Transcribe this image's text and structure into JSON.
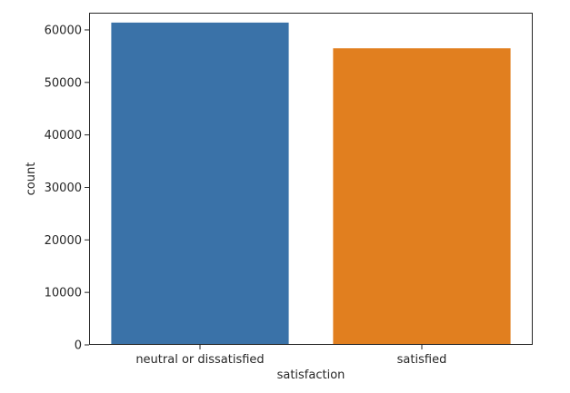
{
  "chart_data": {
    "type": "bar",
    "title": "",
    "xlabel": "satisfaction",
    "ylabel": "count",
    "categories": [
      "neutral or dissatisfied",
      "satisfied"
    ],
    "values": [
      61400,
      56500
    ],
    "colors": [
      "#3a72a8",
      "#e17f1f"
    ],
    "ylim": [
      0,
      63280
    ],
    "yticks": [
      0,
      10000,
      20000,
      30000,
      40000,
      50000,
      60000
    ],
    "grid": false,
    "legend": "none"
  }
}
